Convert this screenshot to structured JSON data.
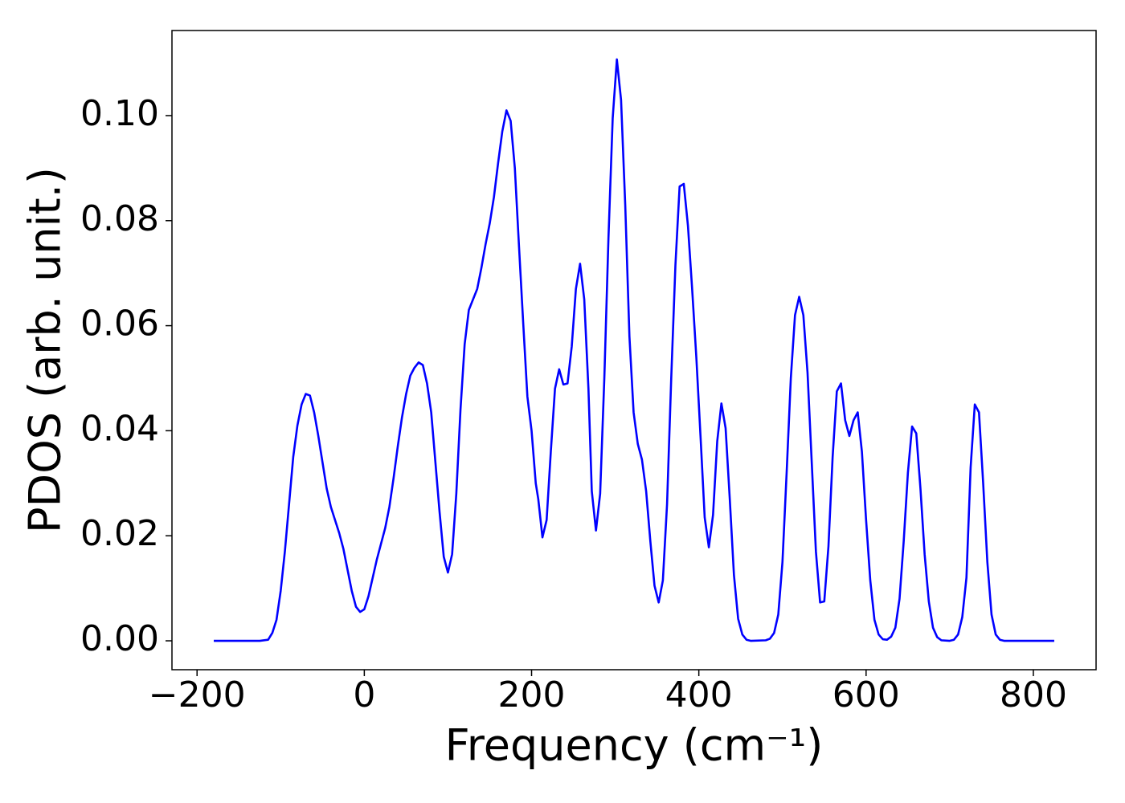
{
  "chart_data": {
    "type": "line",
    "xlabel": "Frequency (cm⁻¹)",
    "ylabel": "PDOS (arb. unit.)",
    "xlim": [
      -230,
      875
    ],
    "ylim": [
      -0.0055,
      0.1162
    ],
    "xticks": [
      {
        "value": -200,
        "label": "−200"
      },
      0,
      200,
      400,
      600,
      800
    ],
    "yticks": [
      {
        "value": 0,
        "label": "0.00"
      },
      {
        "value": 0.02,
        "label": "0.02"
      },
      {
        "value": 0.04,
        "label": "0.04"
      },
      {
        "value": 0.06,
        "label": "0.06"
      },
      {
        "value": 0.08,
        "label": "0.08"
      },
      {
        "value": 0.1,
        "label": "0.10"
      }
    ],
    "x": [
      -180,
      -125,
      -115,
      -110,
      -105,
      -100,
      -95,
      -90,
      -85,
      -80,
      -75,
      -70,
      -65,
      -60,
      -55,
      -50,
      -45,
      -40,
      -35,
      -30,
      -25,
      -20,
      -15,
      -10,
      -5,
      0,
      5,
      10,
      15,
      20,
      25,
      30,
      35,
      40,
      45,
      50,
      55,
      60,
      65,
      70,
      75,
      80,
      85,
      90,
      95,
      100,
      105,
      110,
      115,
      120,
      125,
      130,
      135,
      140,
      145,
      150,
      155,
      160,
      165,
      170,
      175,
      180,
      185,
      190,
      195,
      200,
      205,
      208,
      213,
      218,
      223,
      228,
      233,
      238,
      243,
      248,
      253,
      258,
      263,
      268,
      272,
      277,
      282,
      287,
      292,
      297,
      302,
      307,
      312,
      317,
      322,
      327,
      332,
      337,
      342,
      347,
      352,
      357,
      362,
      367,
      372,
      377,
      382,
      387,
      392,
      397,
      402,
      407,
      412,
      417,
      422,
      427,
      432,
      437,
      442,
      447,
      452,
      457,
      462,
      480,
      485,
      490,
      495,
      500,
      505,
      510,
      515,
      520,
      525,
      530,
      535,
      540,
      545,
      550,
      555,
      560,
      565,
      570,
      575,
      580,
      585,
      590,
      595,
      600,
      605,
      610,
      615,
      620,
      625,
      630,
      635,
      640,
      645,
      650,
      655,
      660,
      665,
      670,
      675,
      680,
      685,
      690,
      700,
      705,
      710,
      715,
      720,
      725,
      730,
      735,
      740,
      745,
      750,
      755,
      760,
      765,
      825
    ],
    "series": [
      {
        "name": "PDOS",
        "color": "#0000ff",
        "values": [
          0,
          0,
          0.0002,
          0.0015,
          0.004,
          0.0095,
          0.017,
          0.026,
          0.035,
          0.041,
          0.045,
          0.047,
          0.0467,
          0.0435,
          0.039,
          0.034,
          0.029,
          0.0255,
          0.023,
          0.0205,
          0.0175,
          0.0135,
          0.0095,
          0.0065,
          0.0055,
          0.006,
          0.0085,
          0.012,
          0.0155,
          0.0185,
          0.0215,
          0.0255,
          0.031,
          0.037,
          0.0425,
          0.047,
          0.0505,
          0.052,
          0.053,
          0.0525,
          0.049,
          0.0435,
          0.034,
          0.0245,
          0.016,
          0.013,
          0.0165,
          0.028,
          0.044,
          0.0565,
          0.063,
          0.065,
          0.067,
          0.071,
          0.0755,
          0.0795,
          0.0845,
          0.091,
          0.097,
          0.101,
          0.099,
          0.09,
          0.075,
          0.0605,
          0.0465,
          0.04,
          0.03,
          0.027,
          0.0197,
          0.023,
          0.036,
          0.048,
          0.0517,
          0.0488,
          0.049,
          0.056,
          0.067,
          0.0718,
          0.065,
          0.048,
          0.0285,
          0.021,
          0.028,
          0.05,
          0.077,
          0.0995,
          0.1107,
          0.103,
          0.083,
          0.058,
          0.0435,
          0.0375,
          0.0345,
          0.0285,
          0.019,
          0.0105,
          0.0073,
          0.0115,
          0.026,
          0.05,
          0.0715,
          0.0865,
          0.087,
          0.079,
          0.067,
          0.054,
          0.039,
          0.0235,
          0.0178,
          0.024,
          0.038,
          0.0452,
          0.0405,
          0.027,
          0.0125,
          0.0042,
          0.0012,
          0.0002,
          0,
          0.0001,
          0.0004,
          0.0015,
          0.005,
          0.015,
          0.032,
          0.05,
          0.062,
          0.0655,
          0.062,
          0.051,
          0.034,
          0.017,
          0.0073,
          0.0075,
          0.018,
          0.035,
          0.0475,
          0.049,
          0.042,
          0.039,
          0.042,
          0.0435,
          0.036,
          0.023,
          0.0115,
          0.004,
          0.0012,
          0.0003,
          0.0002,
          0.0008,
          0.0025,
          0.008,
          0.019,
          0.032,
          0.0408,
          0.0395,
          0.029,
          0.0165,
          0.0075,
          0.0025,
          0.0007,
          0.0001,
          0,
          0.0002,
          0.0012,
          0.0045,
          0.012,
          0.033,
          0.045,
          0.0435,
          0.03,
          0.015,
          0.005,
          0.0012,
          0.0002,
          0,
          0
        ]
      }
    ]
  }
}
